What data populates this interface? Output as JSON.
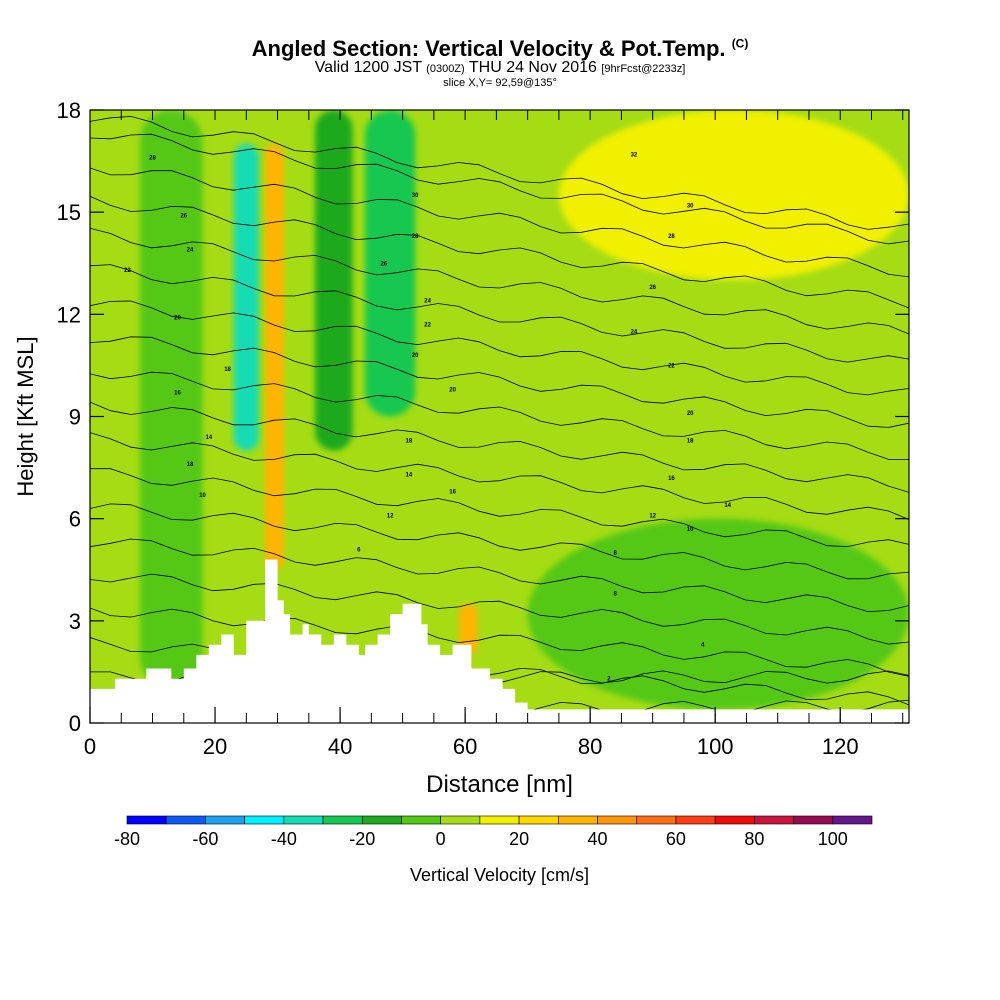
{
  "header": {
    "title": "Angled Section: Vertical Velocity & Pot.Temp.",
    "title_unit": "(C)",
    "valid_prefix": "Valid 1200 JST",
    "valid_utc": "(0300Z)",
    "valid_date": "THU 24 Nov 2016",
    "forecast": "[9hrFcst@2233z]",
    "slice": "slice X,Y= 92,59@135°"
  },
  "chart_data": {
    "type": "heatmap",
    "title": "Angled Section: Vertical Velocity & Pot.Temp. (C)",
    "xlabel": "Distance [nm]",
    "ylabel": "Height [Kft MSL]",
    "xlim": [
      0,
      131
    ],
    "ylim": [
      0,
      18
    ],
    "x_ticks": [
      0,
      20,
      40,
      60,
      80,
      100,
      120
    ],
    "x_tick_labels": [
      "0",
      "20",
      "40",
      "60",
      "80",
      "100",
      "120"
    ],
    "y_ticks": [
      0,
      3,
      6,
      9,
      12,
      15,
      18
    ],
    "y_tick_labels": [
      "0",
      "3",
      "6",
      "9",
      "12",
      "15",
      "18"
    ],
    "minor_x_step": 5,
    "colorbar": {
      "label": "Vertical Velocity [cm/s]",
      "levels": [
        -80,
        -70,
        -60,
        -50,
        -40,
        -30,
        -20,
        -10,
        0,
        10,
        20,
        30,
        40,
        50,
        60,
        70,
        80,
        90,
        100,
        110
      ],
      "tick_labels": [
        "-80",
        "-60",
        "-40",
        "-20",
        "0",
        "20",
        "40",
        "60",
        "80",
        "100"
      ],
      "colors": [
        "#0000ff",
        "#0a5af5",
        "#1ea0f0",
        "#00f0ff",
        "#14dcb4",
        "#14c850",
        "#1eaa1e",
        "#55c814",
        "#a5dc14",
        "#f0f000",
        "#ffd700",
        "#ffb400",
        "#ff960a",
        "#ff6e14",
        "#ff3c14",
        "#f00a0a",
        "#c8143c",
        "#960a50",
        "#64148c"
      ]
    },
    "velocity_field": [
      {
        "x_range": [
          8,
          18
        ],
        "y_range": [
          1,
          18
        ],
        "value": -5
      },
      {
        "x_range": [
          23,
          27
        ],
        "y_range": [
          8,
          17
        ],
        "value": -38
      },
      {
        "x_range": [
          28,
          31
        ],
        "y_range": [
          4.5,
          17
        ],
        "value": 30
      },
      {
        "x_range": [
          36,
          42
        ],
        "y_range": [
          8,
          18
        ],
        "value": -20
      },
      {
        "x_range": [
          44,
          52
        ],
        "y_range": [
          9,
          18
        ],
        "value": -25
      },
      {
        "x_range": [
          59,
          62
        ],
        "y_range": [
          2,
          3.5
        ],
        "value": 35
      },
      {
        "x_range": [
          70,
          131
        ],
        "y_range": [
          0.4,
          6
        ],
        "value": -5
      },
      {
        "x_range": [
          75,
          131
        ],
        "y_range": [
          13,
          18
        ],
        "value": 15
      }
    ],
    "terrain": {
      "x": [
        0,
        4,
        4,
        9,
        9,
        13,
        13,
        15,
        15,
        17,
        17,
        19,
        19,
        21,
        21,
        23,
        23,
        25,
        25,
        28,
        28,
        30,
        30,
        31,
        31,
        32,
        32,
        34,
        34,
        35,
        35,
        37,
        37,
        39,
        39,
        41,
        41,
        43,
        43,
        44,
        44,
        46,
        46,
        48,
        48,
        50,
        50,
        53,
        53,
        54,
        54,
        56,
        56,
        58,
        58,
        61,
        61,
        64,
        64,
        66,
        66,
        68,
        68,
        70,
        70,
        72,
        72,
        131
      ],
      "y": [
        1,
        1,
        1.3,
        1.3,
        1.6,
        1.6,
        1.3,
        1.3,
        1.6,
        1.6,
        2,
        2,
        2.3,
        2.3,
        2.6,
        2.6,
        2,
        2,
        3,
        3,
        4.8,
        4.8,
        3.6,
        3.6,
        3.2,
        3.2,
        2.6,
        2.6,
        2.9,
        2.9,
        2.6,
        2.6,
        2.3,
        2.3,
        2.6,
        2.6,
        2.3,
        2.3,
        2,
        2,
        2.3,
        2.3,
        2.6,
        2.6,
        3.2,
        3.2,
        3.5,
        3.5,
        2.9,
        2.9,
        2.3,
        2.3,
        2,
        2,
        2.3,
        2.3,
        1.6,
        1.6,
        1.3,
        1.3,
        1,
        1,
        0.6,
        0.6,
        0.4,
        0.4,
        0.4,
        0.4
      ]
    },
    "isentropes": {
      "levels": [
        0,
        2,
        4,
        6,
        8,
        10,
        12,
        14,
        16,
        18,
        20,
        22,
        24,
        26,
        28,
        30,
        32,
        34,
        36
      ],
      "label_points": [
        {
          "x": 83,
          "y": 1.3,
          "text": "2"
        },
        {
          "x": 98,
          "y": 2.3,
          "text": "4"
        },
        {
          "x": 43,
          "y": 5.1,
          "text": "6"
        },
        {
          "x": 84,
          "y": 3.8,
          "text": "8"
        },
        {
          "x": 84,
          "y": 5,
          "text": "8"
        },
        {
          "x": 96,
          "y": 5.7,
          "text": "10"
        },
        {
          "x": 18,
          "y": 6.7,
          "text": "10"
        },
        {
          "x": 90,
          "y": 6.1,
          "text": "12"
        },
        {
          "x": 48,
          "y": 6.1,
          "text": "12"
        },
        {
          "x": 102,
          "y": 6.4,
          "text": "14"
        },
        {
          "x": 51,
          "y": 7.3,
          "text": "14"
        },
        {
          "x": 93,
          "y": 7.2,
          "text": "16"
        },
        {
          "x": 58,
          "y": 6.8,
          "text": "16"
        },
        {
          "x": 16,
          "y": 7.6,
          "text": "18"
        },
        {
          "x": 96,
          "y": 8.3,
          "text": "18"
        },
        {
          "x": 51,
          "y": 8.3,
          "text": "18"
        },
        {
          "x": 96,
          "y": 9.1,
          "text": "20"
        },
        {
          "x": 19,
          "y": 8.4,
          "text": "14"
        },
        {
          "x": 58,
          "y": 9.8,
          "text": "20"
        },
        {
          "x": 14,
          "y": 9.7,
          "text": "16"
        },
        {
          "x": 22,
          "y": 10.4,
          "text": "18"
        },
        {
          "x": 52,
          "y": 10.8,
          "text": "20"
        },
        {
          "x": 93,
          "y": 10.5,
          "text": "22"
        },
        {
          "x": 14,
          "y": 11.9,
          "text": "20"
        },
        {
          "x": 87,
          "y": 11.5,
          "text": "24"
        },
        {
          "x": 54,
          "y": 11.7,
          "text": "22"
        },
        {
          "x": 90,
          "y": 12.8,
          "text": "26"
        },
        {
          "x": 54,
          "y": 12.4,
          "text": "24"
        },
        {
          "x": 6,
          "y": 13.3,
          "text": "22"
        },
        {
          "x": 47,
          "y": 13.5,
          "text": "26"
        },
        {
          "x": 16,
          "y": 13.9,
          "text": "24"
        },
        {
          "x": 93,
          "y": 14.3,
          "text": "28"
        },
        {
          "x": 52,
          "y": 14.3,
          "text": "28"
        },
        {
          "x": 15,
          "y": 14.9,
          "text": "26"
        },
        {
          "x": 96,
          "y": 15.2,
          "text": "30"
        },
        {
          "x": 52,
          "y": 15.5,
          "text": "30"
        },
        {
          "x": 10,
          "y": 16.6,
          "text": "28"
        },
        {
          "x": 87,
          "y": 16.7,
          "text": "32"
        }
      ]
    },
    "grid": false,
    "legend": "bottom"
  }
}
